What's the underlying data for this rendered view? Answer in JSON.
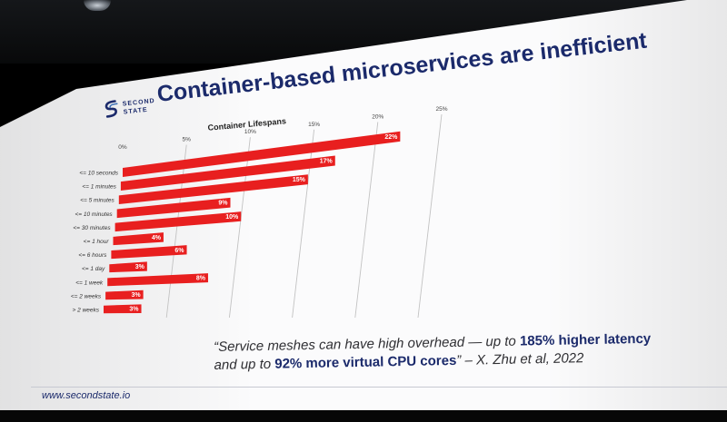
{
  "slide": {
    "title": "Container-based microservices are inefficient",
    "logo_line1": "SECOND",
    "logo_line2": "STATE",
    "quote_part1": "“Service meshes can have high overhead — up to ",
    "quote_bold1": "185% higher latency",
    "quote_part2": "and up to ",
    "quote_bold2": "92% more virtual CPU cores",
    "quote_part3": "” – X. Zhu et al, 2022",
    "footer": "www.secondstate.io"
  },
  "colors": {
    "bar": "#e81f1f",
    "title": "#1b2a6b",
    "grid": "#c2c2c2"
  },
  "chart_data": {
    "type": "bar",
    "orientation": "horizontal",
    "title": "Container Lifespans",
    "categories": [
      "<= 10 seconds",
      "<= 1 minutes",
      "<= 5 minutes",
      "<= 10 minutes",
      "<= 30 minutes",
      "<= 1 hour",
      "<= 6 hours",
      "<= 1 day",
      "<= 1 week",
      "<= 2 weeks",
      "> 2 weeks"
    ],
    "values": [
      22,
      17,
      15,
      9,
      10,
      4,
      6,
      3,
      8,
      3,
      3
    ],
    "value_labels": [
      "22%",
      "17%",
      "15%",
      "9%",
      "10%",
      "4%",
      "6%",
      "3%",
      "8%",
      "3%",
      "3%"
    ],
    "xlim": [
      0,
      25
    ],
    "x_ticks": [
      0,
      5,
      10,
      15,
      20,
      25
    ],
    "x_tick_labels": [
      "0%",
      "5%",
      "10%",
      "15%",
      "20%",
      "25%"
    ],
    "grid": true
  }
}
